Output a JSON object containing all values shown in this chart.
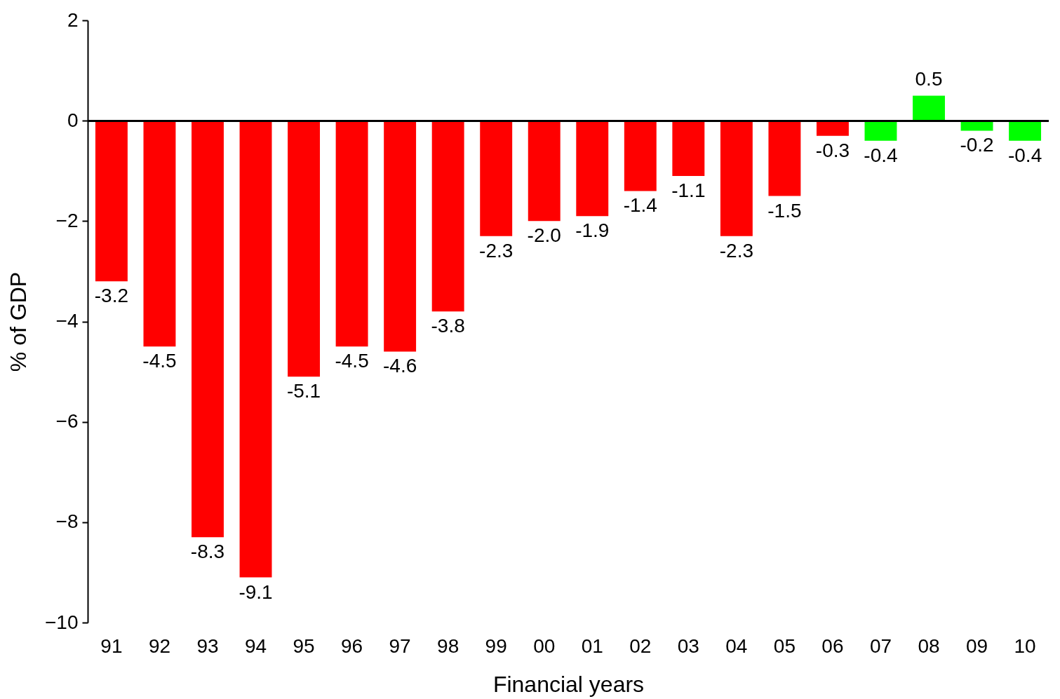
{
  "chart_data": {
    "type": "bar",
    "xlabel": "Financial years",
    "ylabel": "% of GDP",
    "categories": [
      "91",
      "92",
      "93",
      "94",
      "95",
      "96",
      "97",
      "98",
      "99",
      "00",
      "01",
      "02",
      "03",
      "04",
      "05",
      "06",
      "07",
      "08",
      "09",
      "10"
    ],
    "values": [
      -3.2,
      -4.5,
      -8.3,
      -9.1,
      -5.1,
      -4.5,
      -4.6,
      -3.8,
      -2.3,
      -2.0,
      -1.9,
      -1.4,
      -1.1,
      -2.3,
      -1.5,
      -0.3,
      -0.4,
      0.5,
      -0.2,
      -0.4
    ],
    "colors": [
      "#ff0000",
      "#ff0000",
      "#ff0000",
      "#ff0000",
      "#ff0000",
      "#ff0000",
      "#ff0000",
      "#ff0000",
      "#ff0000",
      "#ff0000",
      "#ff0000",
      "#ff0000",
      "#ff0000",
      "#ff0000",
      "#ff0000",
      "#ff0000",
      "#00ff00",
      "#00ff00",
      "#00ff00",
      "#00ff00"
    ],
    "value_labels": [
      "-3.2",
      "-4.5",
      "-8.3",
      "-9.1",
      "-5.1",
      "-4.5",
      "-4.6",
      "-3.8",
      "-2.3",
      "-2.0",
      "-1.9",
      "-1.4",
      "-1.1",
      "-2.3",
      "-1.5",
      "-0.3",
      "-0.4",
      "0.5",
      "-0.2",
      "-0.4"
    ],
    "ylim": [
      -10,
      2
    ],
    "yticks": [
      -10,
      -8,
      -6,
      -4,
      -2,
      0,
      2
    ],
    "ref_lines": [
      {
        "axis": "y",
        "value": 0,
        "color": "#000000",
        "line_style": "solid"
      }
    ]
  }
}
